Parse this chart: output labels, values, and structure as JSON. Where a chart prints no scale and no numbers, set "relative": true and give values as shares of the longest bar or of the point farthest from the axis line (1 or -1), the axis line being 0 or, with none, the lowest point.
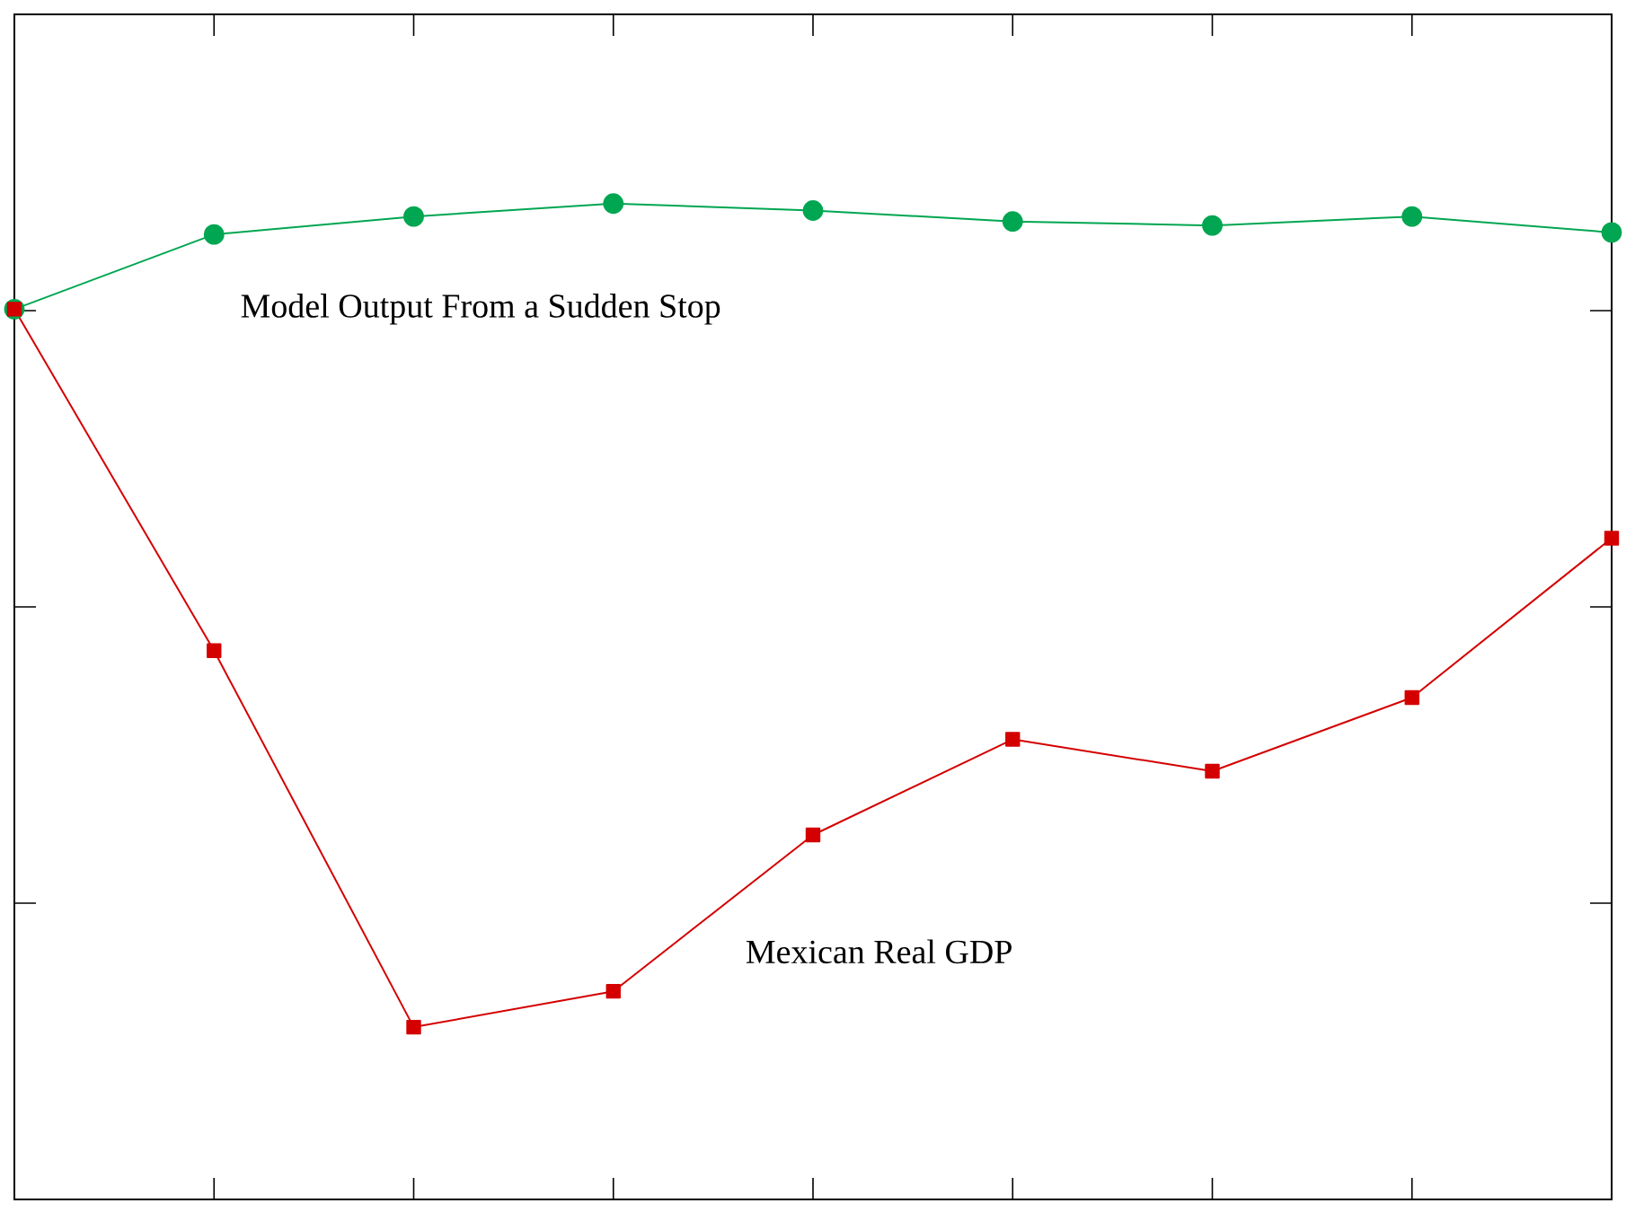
{
  "chart_data": {
    "type": "line",
    "relative": true,
    "legend": false,
    "grid": false,
    "categories": [
      null,
      null,
      null,
      null,
      null,
      null,
      null,
      null,
      null
    ],
    "series": [
      {
        "name": "Model Output From a Sudden Stop",
        "color": "#00a651",
        "marker": "circle",
        "values": [
          0.894,
          0.969,
          0.987,
          1.0,
          0.993,
          0.982,
          0.978,
          0.987,
          0.971
        ]
      },
      {
        "name": "Mexican Real GDP",
        "color": "#d40000",
        "marker": "square",
        "values": [
          0.894,
          0.551,
          0.173,
          0.209,
          0.366,
          0.462,
          0.43,
          0.504,
          0.664
        ]
      }
    ]
  }
}
